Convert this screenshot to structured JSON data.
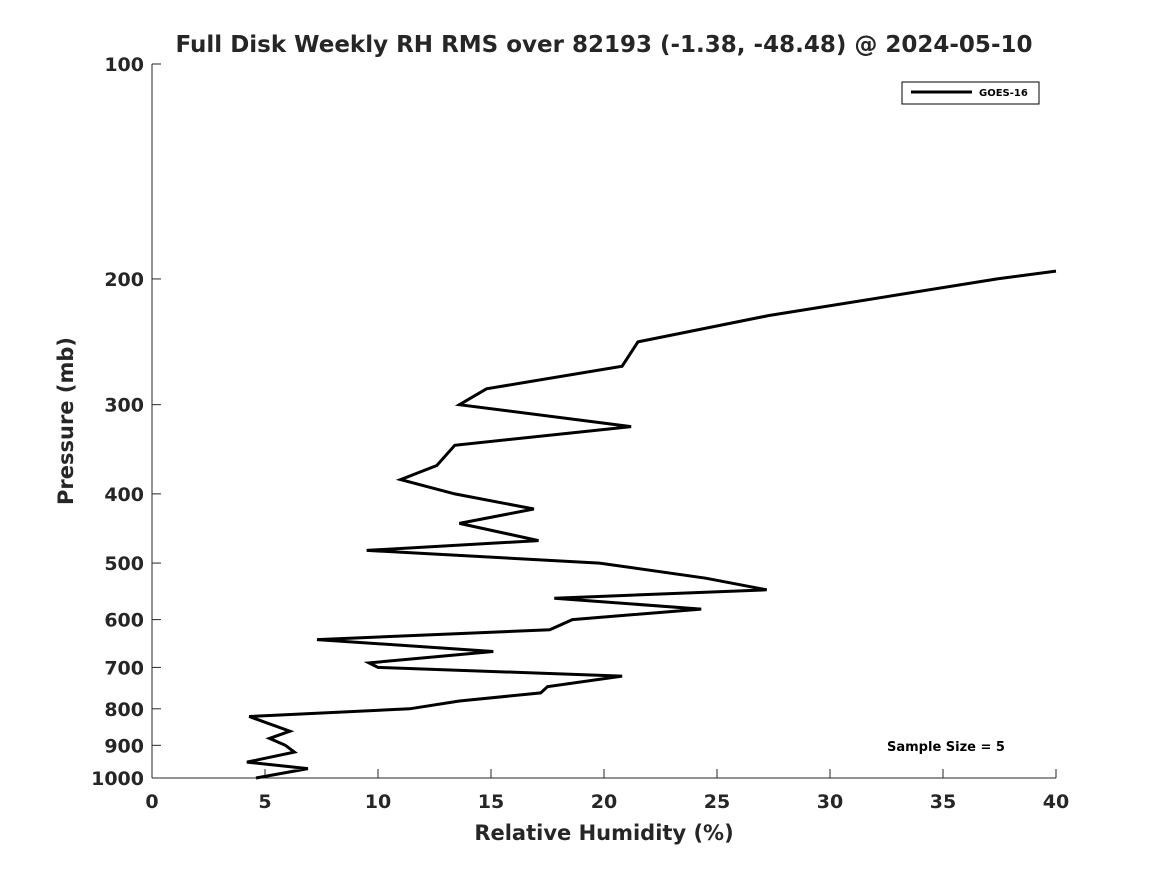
{
  "chart_data": {
    "type": "line",
    "title": "Full Disk Weekly RH RMS over 82193 (-1.38, -48.48) @ 2024-05-10",
    "xlabel": "Relative Humidity (%)",
    "ylabel": "Pressure (mb)",
    "xlim": [
      0,
      40
    ],
    "ylim": [
      100,
      1000
    ],
    "yscale": "log",
    "yreversed": true,
    "grid": false,
    "xticks": [
      0,
      5,
      10,
      15,
      20,
      25,
      30,
      35,
      40
    ],
    "yticks": [
      100,
      200,
      300,
      400,
      500,
      600,
      700,
      800,
      900,
      1000
    ],
    "xtick_labels": [
      "0",
      "5",
      "10",
      "15",
      "20",
      "25",
      "30",
      "35",
      "40"
    ],
    "ytick_labels": [
      "100",
      "200",
      "300",
      "400",
      "500",
      "600",
      "700",
      "800",
      "900",
      "1000"
    ],
    "legend": {
      "position": "top-right",
      "entries": [
        "GOES-16"
      ]
    },
    "annotations": [
      {
        "text": "Sample Size = 5",
        "position": "bottom-right"
      }
    ],
    "series": [
      {
        "name": "GOES-16",
        "color": "#000000",
        "points": [
          [
            40.0,
            195
          ],
          [
            37.4,
            200
          ],
          [
            27.3,
            225
          ],
          [
            21.5,
            245
          ],
          [
            20.8,
            265
          ],
          [
            14.8,
            285
          ],
          [
            13.6,
            300
          ],
          [
            21.2,
            322
          ],
          [
            13.4,
            342
          ],
          [
            12.6,
            365
          ],
          [
            11.0,
            382
          ],
          [
            13.4,
            400
          ],
          [
            16.9,
            420
          ],
          [
            13.6,
            440
          ],
          [
            17.1,
            465
          ],
          [
            9.5,
            480
          ],
          [
            19.8,
            500
          ],
          [
            24.5,
            525
          ],
          [
            27.2,
            545
          ],
          [
            17.8,
            560
          ],
          [
            24.3,
            580
          ],
          [
            18.6,
            600
          ],
          [
            17.6,
            620
          ],
          [
            7.3,
            640
          ],
          [
            15.1,
            665
          ],
          [
            9.6,
            690
          ],
          [
            10.0,
            700
          ],
          [
            20.8,
            720
          ],
          [
            17.5,
            745
          ],
          [
            17.2,
            760
          ],
          [
            13.6,
            780
          ],
          [
            11.4,
            800
          ],
          [
            4.3,
            820
          ],
          [
            6.1,
            860
          ],
          [
            5.2,
            880
          ],
          [
            5.9,
            900
          ],
          [
            6.3,
            920
          ],
          [
            4.2,
            950
          ],
          [
            6.9,
            970
          ],
          [
            4.6,
            1000
          ]
        ]
      }
    ]
  }
}
